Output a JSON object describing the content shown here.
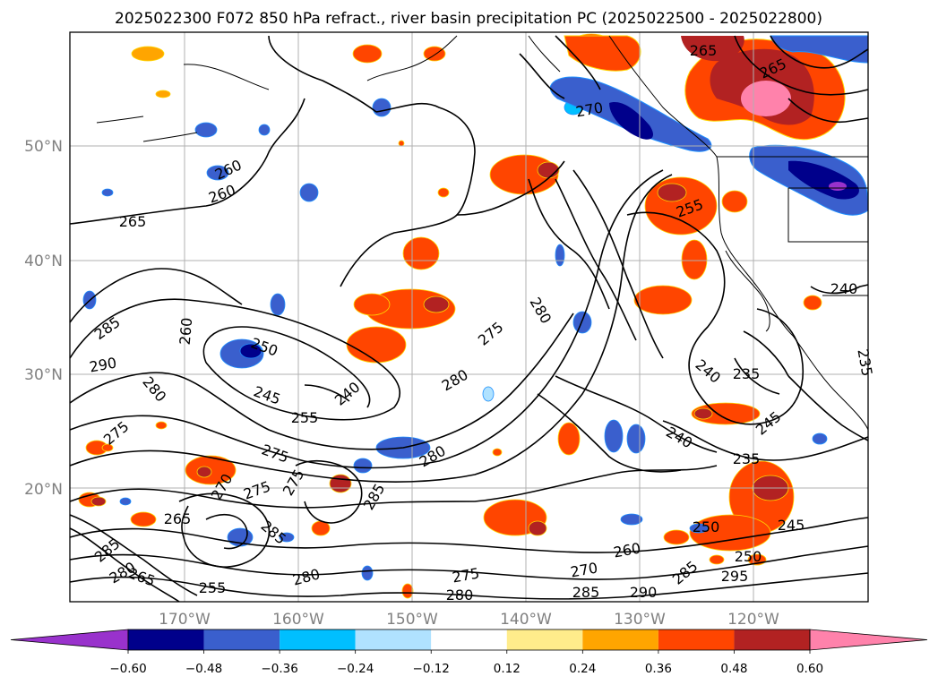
{
  "title": "2025022300 F072 850 hPa refract., river basin precipitation PC (2025022500 - 2025022800)",
  "lat_labels": [
    "50°N",
    "40°N",
    "30°N",
    "20°N"
  ],
  "lon_labels": [
    "170°W",
    "160°W",
    "150°W",
    "140°W",
    "130°W",
    "120°W"
  ],
  "colorbar": {
    "colors": [
      "#9932cc",
      "#00008b",
      "#3a5fcd",
      "#00bfff",
      "#b0e2ff",
      "#ffffff",
      "#ffec8b",
      "#ffa500",
      "#ff4500",
      "#b22222",
      "#ff82ab"
    ],
    "tick_labels": [
      "−0.60",
      "−0.48",
      "−0.36",
      "−0.24",
      "−0.12",
      "0.12",
      "0.24",
      "0.36",
      "0.48",
      "0.60"
    ]
  },
  "contour_labels": [
    "265",
    "265",
    "260",
    "260",
    "270",
    "265",
    "255",
    "240",
    "235",
    "235",
    "285",
    "290",
    "280",
    "275",
    "260",
    "250",
    "245",
    "255",
    "240",
    "275",
    "280",
    "280",
    "280",
    "275",
    "275",
    "270",
    "275",
    "265",
    "285",
    "285",
    "280",
    "275",
    "265",
    "255",
    "260",
    "270",
    "285",
    "290",
    "240",
    "245",
    "235",
    "240",
    "250",
    "245",
    "250",
    "285",
    "295",
    "280",
    "285",
    "280"
  ],
  "colors": {
    "coast": "#000000",
    "grid": "#b0b0b0",
    "contour": "#000000"
  }
}
